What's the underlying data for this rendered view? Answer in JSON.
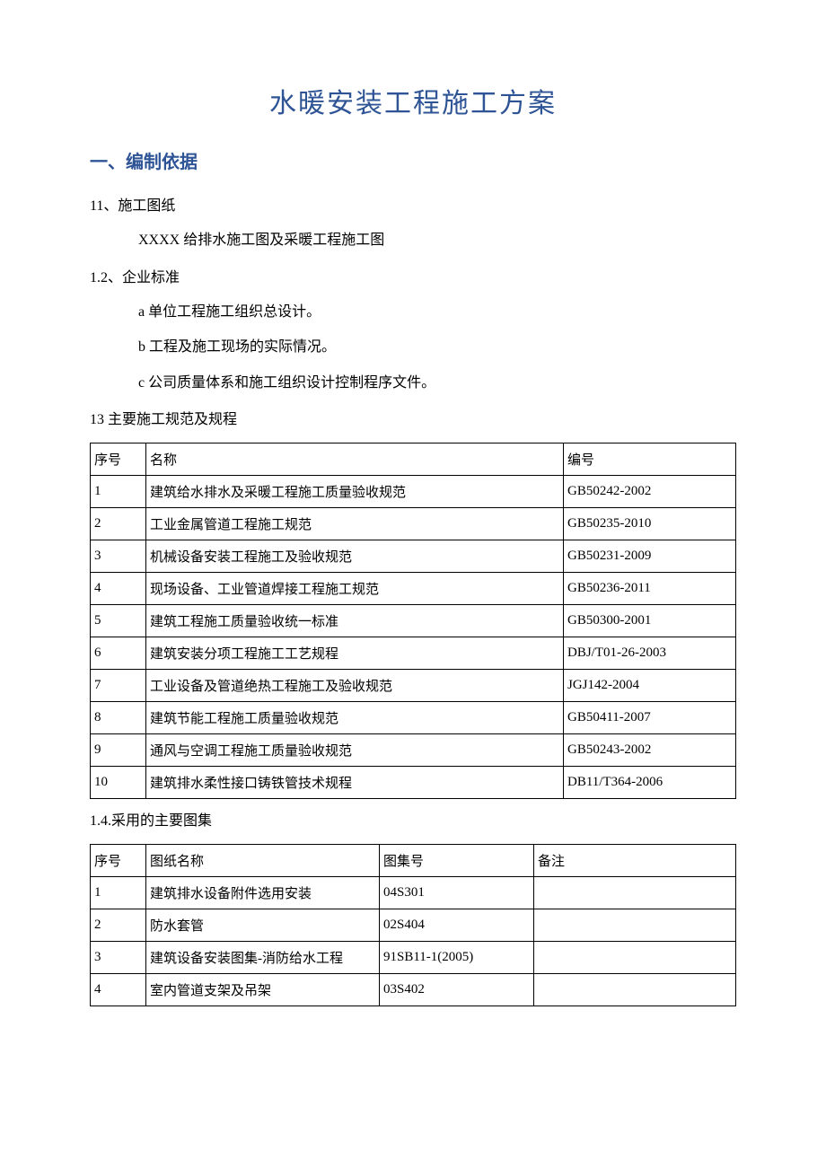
{
  "title": "水暖安装工程施工方案",
  "section1": {
    "heading": "一、编制依据",
    "s11": "11、施工图纸",
    "s11_text": "XXXX 给排水施工图及采暖工程施工图",
    "s12": "1.2、企业标准",
    "s12_a": "a 单位工程施工组织总设计。",
    "s12_b": "b 工程及施工现场的实际情况。",
    "s12_c": "c 公司质量体系和施工组织设计控制程序文件。",
    "s13": "13 主要施工规范及规程",
    "s14": "1.4.采用的主要图集"
  },
  "table1": {
    "header": {
      "num": "序号",
      "name": "名称",
      "code": "编号"
    },
    "rows": [
      {
        "num": "1",
        "name": "建筑给水排水及采暖工程施工质量验收规范",
        "code": "GB50242-2002"
      },
      {
        "num": "2",
        "name": "工业金属管道工程施工规范",
        "code": "GB50235-2010"
      },
      {
        "num": "3",
        "name": "机械设备安装工程施工及验收规范",
        "code": "GB50231-2009"
      },
      {
        "num": "4",
        "name": "现场设备、工业管道焊接工程施工规范",
        "code": "GB50236-2011"
      },
      {
        "num": "5",
        "name": "建筑工程施工质量验收统一标准",
        "code": "GB50300-2001"
      },
      {
        "num": "6",
        "name": "建筑安装分项工程施工工艺规程",
        "code": "DBJ/T01-26-2003"
      },
      {
        "num": "7",
        "name": "工业设备及管道绝热工程施工及验收规范",
        "code": "JGJ142-2004"
      },
      {
        "num": "8",
        "name": "建筑节能工程施工质量验收规范",
        "code": "GB50411-2007"
      },
      {
        "num": "9",
        "name": "通风与空调工程施工质量验收规范",
        "code": "GB50243-2002"
      },
      {
        "num": "10",
        "name": "建筑排水柔性接口铸铁管技术规程",
        "code": "DB11/T364-2006"
      }
    ]
  },
  "table2": {
    "header": {
      "num": "序号",
      "name": "图纸名称",
      "code": "图集号",
      "note": "备注"
    },
    "rows": [
      {
        "num": "1",
        "name": "建筑排水设备附件选用安装",
        "code": "04S301",
        "note": ""
      },
      {
        "num": "2",
        "name": "防水套管",
        "code": "02S404",
        "note": ""
      },
      {
        "num": "3",
        "name": "建筑设备安装图集-消防给水工程",
        "code": "91SB11-1(2005)",
        "note": ""
      },
      {
        "num": "4",
        "name": "室内管道支架及吊架",
        "code": "03S402",
        "note": ""
      }
    ]
  }
}
